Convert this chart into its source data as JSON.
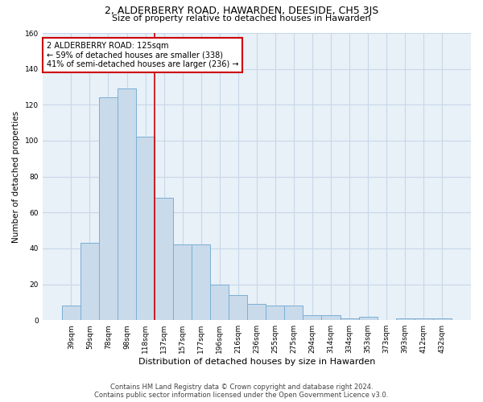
{
  "title": "2, ALDERBERRY ROAD, HAWARDEN, DEESIDE, CH5 3JS",
  "subtitle": "Size of property relative to detached houses in Hawarden",
  "xlabel": "Distribution of detached houses by size in Hawarden",
  "ylabel": "Number of detached properties",
  "footer_line1": "Contains HM Land Registry data © Crown copyright and database right 2024.",
  "footer_line2": "Contains public sector information licensed under the Open Government Licence v3.0.",
  "categories": [
    "39sqm",
    "59sqm",
    "78sqm",
    "98sqm",
    "118sqm",
    "137sqm",
    "157sqm",
    "177sqm",
    "196sqm",
    "216sqm",
    "236sqm",
    "255sqm",
    "275sqm",
    "294sqm",
    "314sqm",
    "334sqm",
    "353sqm",
    "373sqm",
    "393sqm",
    "412sqm",
    "432sqm"
  ],
  "values": [
    8,
    43,
    124,
    129,
    102,
    68,
    42,
    42,
    20,
    14,
    9,
    8,
    8,
    3,
    3,
    1,
    2,
    0,
    1,
    1,
    1
  ],
  "bar_color": "#c9daea",
  "bar_edge_color": "#7bafd4",
  "grid_color": "#c8d8e8",
  "background_color": "#e8f0f8",
  "annotation_box_color": "#ffffff",
  "annotation_border_color": "#cc0000",
  "property_line_color": "#cc0000",
  "property_line_x": 4.5,
  "annotation_title": "2 ALDERBERRY ROAD: 125sqm",
  "annotation_line2": "← 59% of detached houses are smaller (338)",
  "annotation_line3": "41% of semi-detached houses are larger (236) →",
  "ylim": [
    0,
    160
  ],
  "yticks": [
    0,
    20,
    40,
    60,
    80,
    100,
    120,
    140,
    160
  ],
  "title_fontsize": 9,
  "subtitle_fontsize": 8,
  "ylabel_fontsize": 7.5,
  "xlabel_fontsize": 8,
  "tick_fontsize": 6.5,
  "footer_fontsize": 6
}
